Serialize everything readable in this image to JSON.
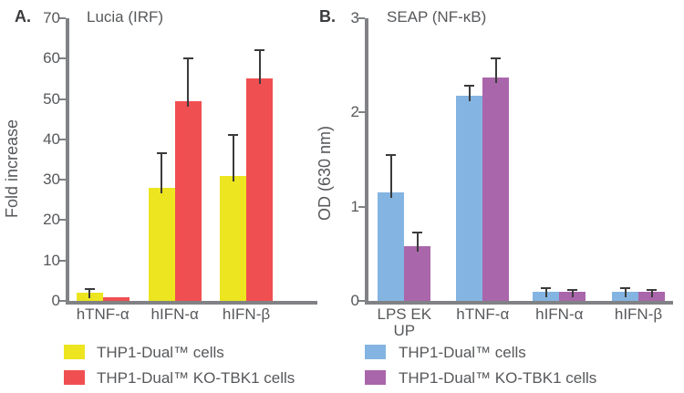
{
  "colors": {
    "axis": "#808285",
    "text": "#56585b",
    "panel_label": "#3a3b3d",
    "error_bar": "#3b3b3b",
    "yellow": "#ece51f",
    "red": "#f04f51",
    "blue": "#84b4e1",
    "purple": "#aa66aa",
    "background": "#ffffff"
  },
  "chart_data": [
    {
      "type": "bar",
      "panel_label": "A.",
      "title": "Lucia (IRF)",
      "ylabel": "Fold increase",
      "xlabel": "",
      "ylim": [
        0,
        70
      ],
      "yticks": [
        0,
        10,
        20,
        30,
        40,
        50,
        60,
        70
      ],
      "grid": false,
      "legend_position": "bottom",
      "categories": [
        "hTNF-α",
        "hIFN-α",
        "hIFN-β"
      ],
      "series": [
        {
          "name": "THP1-Dual™ cells",
          "color": "#ece51f",
          "values": [
            2,
            28,
            31
          ],
          "errors_up": [
            1,
            8.5,
            10
          ]
        },
        {
          "name": "THP1-Dual™ KO-TBK1 cells",
          "color": "#f04f51",
          "values": [
            1,
            49.5,
            55
          ],
          "errors_up": [
            0,
            10.5,
            7
          ]
        }
      ]
    },
    {
      "type": "bar",
      "panel_label": "B.",
      "title": "SEAP (NF-κB)",
      "ylabel": "OD (630 nm)",
      "xlabel": "",
      "ylim": [
        0,
        3
      ],
      "yticks": [
        0,
        1,
        2,
        3
      ],
      "grid": false,
      "legend_position": "bottom",
      "categories": [
        "LPS EK\nUP",
        "hTNF-α",
        "hIFN-α",
        "hIFN-β"
      ],
      "series": [
        {
          "name": "THP1-Dual™ cells",
          "color": "#84b4e1",
          "values": [
            1.15,
            2.18,
            0.1,
            0.1
          ],
          "errors_up": [
            0.4,
            0.1,
            0.04,
            0.04
          ]
        },
        {
          "name": "THP1-Dual™ KO-TBK1 cells",
          "color": "#aa66aa",
          "values": [
            0.58,
            2.37,
            0.1,
            0.1
          ],
          "errors_up": [
            0.15,
            0.2,
            0.02,
            0.02
          ]
        }
      ]
    }
  ]
}
